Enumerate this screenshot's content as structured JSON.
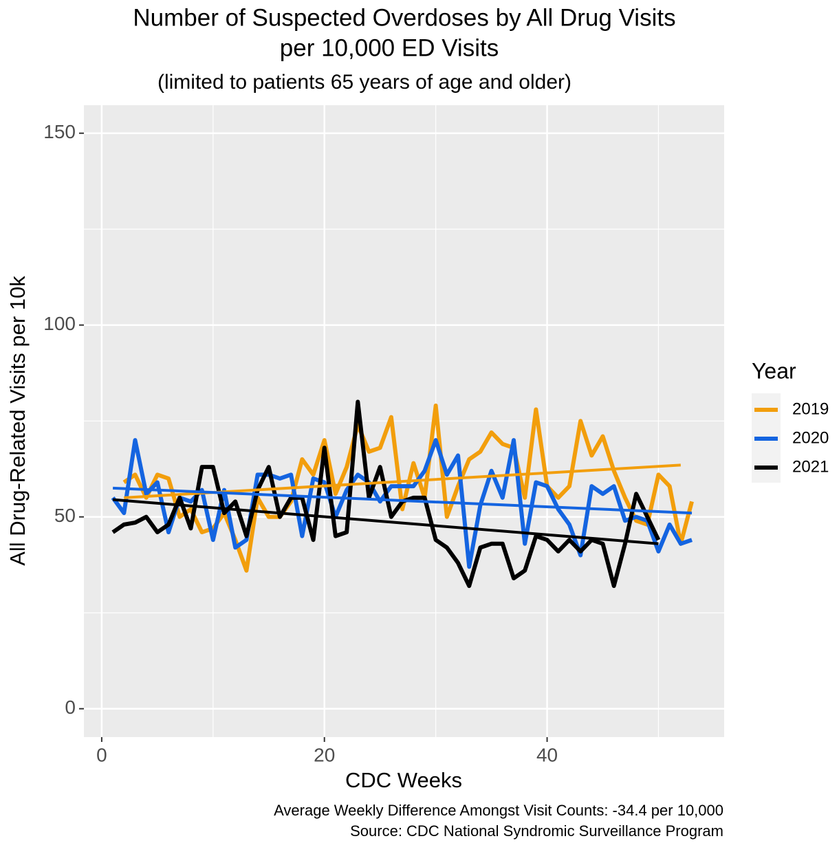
{
  "chart_data": {
    "type": "line",
    "title": [
      "Number of Suspected Overdoses by All Drug Visits",
      "per 10,000 ED Visits"
    ],
    "subtitle": "(limited to patients 65 years of age and older)",
    "x_label": "CDC Weeks",
    "y_label": "All Drug-Related Visits per 10k",
    "legend_title": "Year",
    "notes": [
      "Average Weekly Difference Amongst Visit Counts: -34.4 per 10,000",
      "Source: CDC National Syndromic Surveillance Program"
    ],
    "xlim": [
      -1.6,
      55.9
    ],
    "ylim": [
      -7.4,
      157.3
    ],
    "xticks": [
      0,
      20,
      40
    ],
    "yticks": [
      0,
      50,
      100,
      150
    ],
    "x_minor_grid": [
      10,
      30,
      50
    ],
    "y_minor_grid": [
      25,
      75,
      125
    ],
    "grid": true,
    "legend": "right",
    "series": [
      {
        "name": "2019",
        "color": "#f29e0c",
        "x": [
          2,
          3,
          4,
          5,
          6,
          7,
          8,
          9,
          10,
          11,
          12,
          13,
          14,
          15,
          16,
          17,
          18,
          19,
          20,
          21,
          22,
          23,
          24,
          25,
          26,
          27,
          28,
          29,
          30,
          31,
          32,
          33,
          34,
          35,
          36,
          37,
          38,
          39,
          40,
          41,
          42,
          43,
          44,
          45,
          46,
          47,
          48,
          49,
          50,
          51,
          52,
          53
        ],
        "values": [
          59,
          61,
          55,
          61,
          60,
          50,
          52,
          46,
          47,
          51,
          44,
          36,
          55,
          50,
          50,
          54,
          65,
          61,
          70,
          56,
          63,
          74,
          67,
          68,
          76,
          52,
          64,
          55,
          79,
          50,
          58,
          65,
          67,
          72,
          69,
          68,
          55,
          78,
          58,
          55,
          58,
          75,
          66,
          71,
          62,
          55,
          49,
          48,
          61,
          58,
          43,
          54
        ],
        "trend": {
          "x": [
            2,
            52
          ],
          "values": [
            55,
            63.5
          ]
        }
      },
      {
        "name": "2020",
        "color": "#1464e0",
        "x": [
          1,
          2,
          3,
          4,
          5,
          6,
          7,
          8,
          9,
          10,
          11,
          12,
          13,
          14,
          15,
          16,
          17,
          18,
          19,
          20,
          21,
          22,
          23,
          24,
          25,
          26,
          27,
          28,
          29,
          30,
          31,
          32,
          33,
          34,
          35,
          36,
          37,
          38,
          39,
          40,
          41,
          42,
          43,
          44,
          45,
          46,
          47,
          48,
          49,
          50,
          51,
          52,
          53
        ],
        "values": [
          55,
          51,
          70,
          56,
          59,
          46,
          55,
          54,
          57,
          44,
          57,
          42,
          44,
          61,
          61,
          60,
          61,
          45,
          60,
          59,
          50,
          57,
          61,
          59,
          54,
          58,
          58,
          58,
          62,
          70,
          61,
          66,
          37,
          53,
          62,
          55,
          70,
          43,
          59,
          58,
          52,
          48,
          40,
          58,
          56,
          58,
          49,
          50,
          49,
          41,
          48,
          43,
          44
        ],
        "trend": {
          "x": [
            1,
            53
          ],
          "values": [
            57.5,
            51
          ]
        }
      },
      {
        "name": "2021",
        "color": "#000000",
        "x": [
          1,
          2,
          3,
          4,
          5,
          6,
          7,
          8,
          9,
          10,
          11,
          12,
          13,
          14,
          15,
          16,
          17,
          18,
          19,
          20,
          21,
          22,
          23,
          24,
          25,
          26,
          27,
          28,
          29,
          30,
          31,
          32,
          33,
          34,
          35,
          36,
          37,
          38,
          39,
          40,
          41,
          42,
          43,
          44,
          45,
          46,
          47,
          48,
          49,
          50
        ],
        "values": [
          46,
          48,
          48.5,
          50,
          46,
          48,
          55,
          47,
          63,
          63,
          51,
          54,
          45,
          57,
          63,
          50,
          55,
          55,
          44,
          68,
          45,
          46,
          80,
          55,
          63,
          50,
          54,
          55,
          55,
          44,
          42,
          38,
          32,
          42,
          43,
          43,
          34,
          36,
          45,
          44,
          41,
          44,
          41,
          44,
          43,
          32,
          43,
          56,
          50,
          44
        ],
        "trend": {
          "x": [
            1,
            50
          ],
          "values": [
            54.5,
            43
          ]
        }
      }
    ]
  }
}
